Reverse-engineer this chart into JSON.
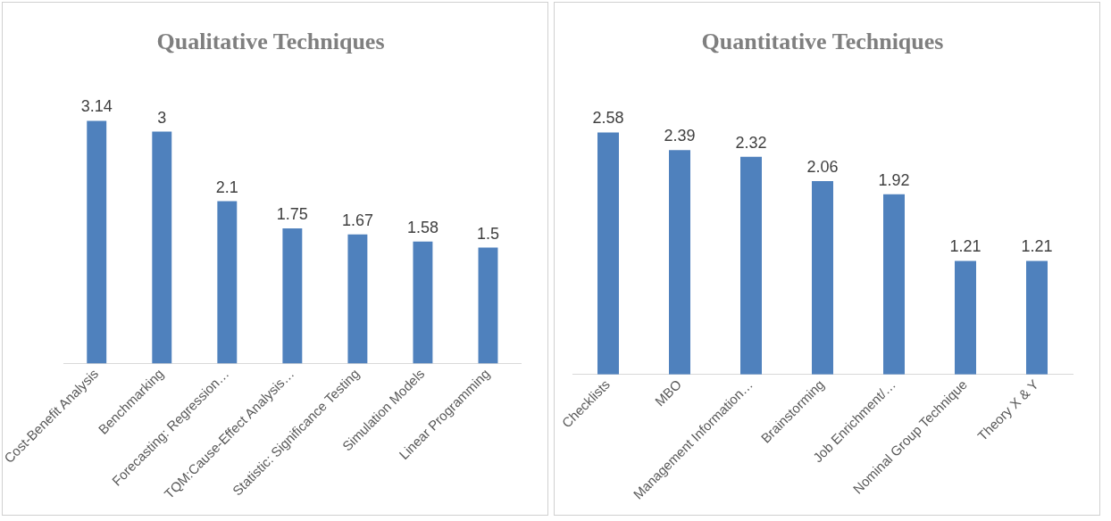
{
  "chart_data": [
    {
      "type": "bar",
      "title": "Qualitative Techniques",
      "categories": [
        "Cost-Benefit Analysis",
        "Benchmarking",
        "Forecasting: Regression…",
        "TQM:Cause-Effect Analysis…",
        "Statistic: Significance Testing",
        "Simulation Models",
        "Linear Programming"
      ],
      "values": [
        3.14,
        3,
        2.1,
        1.75,
        1.67,
        1.58,
        1.5
      ],
      "color": "#4f81bd",
      "data_labels": true,
      "legend": false,
      "grid": false
    },
    {
      "type": "bar",
      "title": "Quantitative Techniques",
      "categories": [
        "Checklists",
        "MBO",
        "Management Information…",
        "Brainstorming",
        "Job Enrichment/…",
        "Nominal Group Technique",
        "Theory X & Y"
      ],
      "values": [
        2.58,
        2.39,
        2.32,
        2.06,
        1.92,
        1.21,
        1.21
      ],
      "color": "#4f81bd",
      "data_labels": true,
      "legend": false,
      "grid": false
    }
  ]
}
